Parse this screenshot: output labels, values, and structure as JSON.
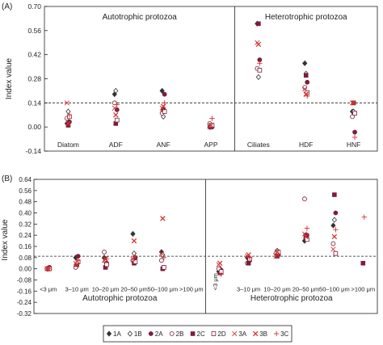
{
  "chart_data": [
    {
      "type": "scatter",
      "panel_label": "(A)",
      "ylabel": "Index value",
      "ylim": [
        -0.14,
        0.7
      ],
      "yticks": [
        "0.70",
        "0.56",
        "0.42",
        "0.28",
        "0.14",
        "0.00",
        "-0.14"
      ],
      "categories": [
        "Diatom",
        "ADF",
        "ANF",
        "APP",
        "Ciliates",
        "HDF",
        "HNF"
      ],
      "reference_line": 0.14,
      "divider_after_index": 3,
      "group_labels": [
        "Autotrophic protozoa",
        "Heterotrophic protozoa"
      ],
      "series": [
        {
          "name": "1A",
          "values": [
            0.02,
            0.19,
            0.21,
            0.0,
            0.6,
            0.37,
            0.09
          ]
        },
        {
          "name": "1B",
          "values": [
            0.09,
            0.21,
            0.06,
            0.0,
            0.29,
            0.31,
            0.09
          ]
        },
        {
          "name": "2A",
          "values": [
            0.03,
            0.1,
            0.19,
            0.0,
            0.39,
            0.26,
            -0.03
          ]
        },
        {
          "name": "2B",
          "values": [
            0.05,
            0.14,
            0.08,
            0.02,
            0.34,
            0.23,
            0.06
          ]
        },
        {
          "name": "2C",
          "values": [
            0.01,
            0.02,
            0.1,
            0.0,
            0.6,
            0.3,
            0.14
          ]
        },
        {
          "name": "2D",
          "values": [
            0.06,
            0.04,
            0.09,
            0.01,
            0.33,
            0.2,
            0.08
          ]
        },
        {
          "name": "3A",
          "values": [
            0.14,
            0.11,
            0.11,
            0.0,
            0.49,
            0.22,
            0.14
          ]
        },
        {
          "name": "3B",
          "values": [
            0.02,
            0.07,
            0.12,
            0.01,
            0.48,
            0.19,
            0.14
          ]
        },
        {
          "name": "3C",
          "values": [
            0.07,
            0.13,
            0.14,
            0.05,
            0.37,
            0.18,
            -0.06
          ]
        }
      ]
    },
    {
      "type": "scatter",
      "panel_label": "(B)",
      "ylabel": "Index value",
      "ylim": [
        -0.32,
        0.64
      ],
      "yticks": [
        "0.64",
        "0.56",
        "0.48",
        "0.40",
        "0.32",
        "0.24",
        "0.16",
        "0.08",
        "0.00",
        "-0.08",
        "-0.16",
        "-0.24",
        "-0.32"
      ],
      "categories": [
        "<3 μm",
        "3–10 μm",
        "10–20 μm",
        "20–50 μm",
        "50–100 μm",
        ">100 μm",
        "<3 μm",
        "3–10 μm",
        "10–20 μm",
        "20–50 μm",
        "50–100 μm",
        ">100 μm"
      ],
      "reference_line": 0.09,
      "divider_after_index": 5,
      "group_labels": [
        "Autotrophic protozoa",
        "Heterotrophic protozoa"
      ],
      "series": [
        {
          "name": "1A",
          "values": [
            0.0,
            0.08,
            0.08,
            0.25,
            0.12,
            null,
            -0.02,
            0.08,
            0.11,
            0.2,
            0.31,
            null
          ]
        },
        {
          "name": "1B",
          "values": [
            0.0,
            0.02,
            0.05,
            0.11,
            0.1,
            null,
            0.0,
            0.05,
            0.13,
            0.22,
            0.35,
            null
          ]
        },
        {
          "name": "2A",
          "values": [
            0.01,
            0.09,
            0.04,
            0.08,
            0.01,
            null,
            -0.01,
            0.06,
            0.1,
            0.24,
            0.4,
            null
          ]
        },
        {
          "name": "2B",
          "values": [
            0.0,
            0.01,
            0.12,
            0.06,
            0.06,
            null,
            0.0,
            0.04,
            0.11,
            0.5,
            0.18,
            null
          ]
        },
        {
          "name": "2C",
          "values": [
            0.0,
            0.03,
            0.01,
            0.04,
            0.0,
            null,
            -0.03,
            0.04,
            0.09,
            0.24,
            0.53,
            0.04
          ]
        },
        {
          "name": "2D",
          "values": [
            0.0,
            0.05,
            0.03,
            0.05,
            0.01,
            null,
            -0.02,
            0.07,
            0.12,
            0.21,
            0.11,
            null
          ]
        },
        {
          "name": "3A",
          "values": [
            0.0,
            0.04,
            0.06,
            0.07,
            0.11,
            null,
            0.03,
            0.09,
            0.09,
            0.25,
            0.14,
            null
          ]
        },
        {
          "name": "3B",
          "values": [
            0.0,
            0.03,
            0.07,
            0.2,
            0.36,
            null,
            0.04,
            0.1,
            0.12,
            0.23,
            0.23,
            null
          ]
        },
        {
          "name": "3C",
          "values": [
            0.0,
            0.06,
            0.07,
            0.09,
            0.08,
            null,
            -0.04,
            0.08,
            0.1,
            0.29,
            0.28,
            0.37
          ]
        }
      ]
    }
  ],
  "legend": [
    "1A",
    "1B",
    "2A",
    "2B",
    "2C",
    "2D",
    "3A",
    "3B",
    "3C"
  ],
  "colors": {
    "dark": "#333333",
    "maroon": "#7a1f3a",
    "red": "#d23434",
    "axis": "#222222"
  }
}
